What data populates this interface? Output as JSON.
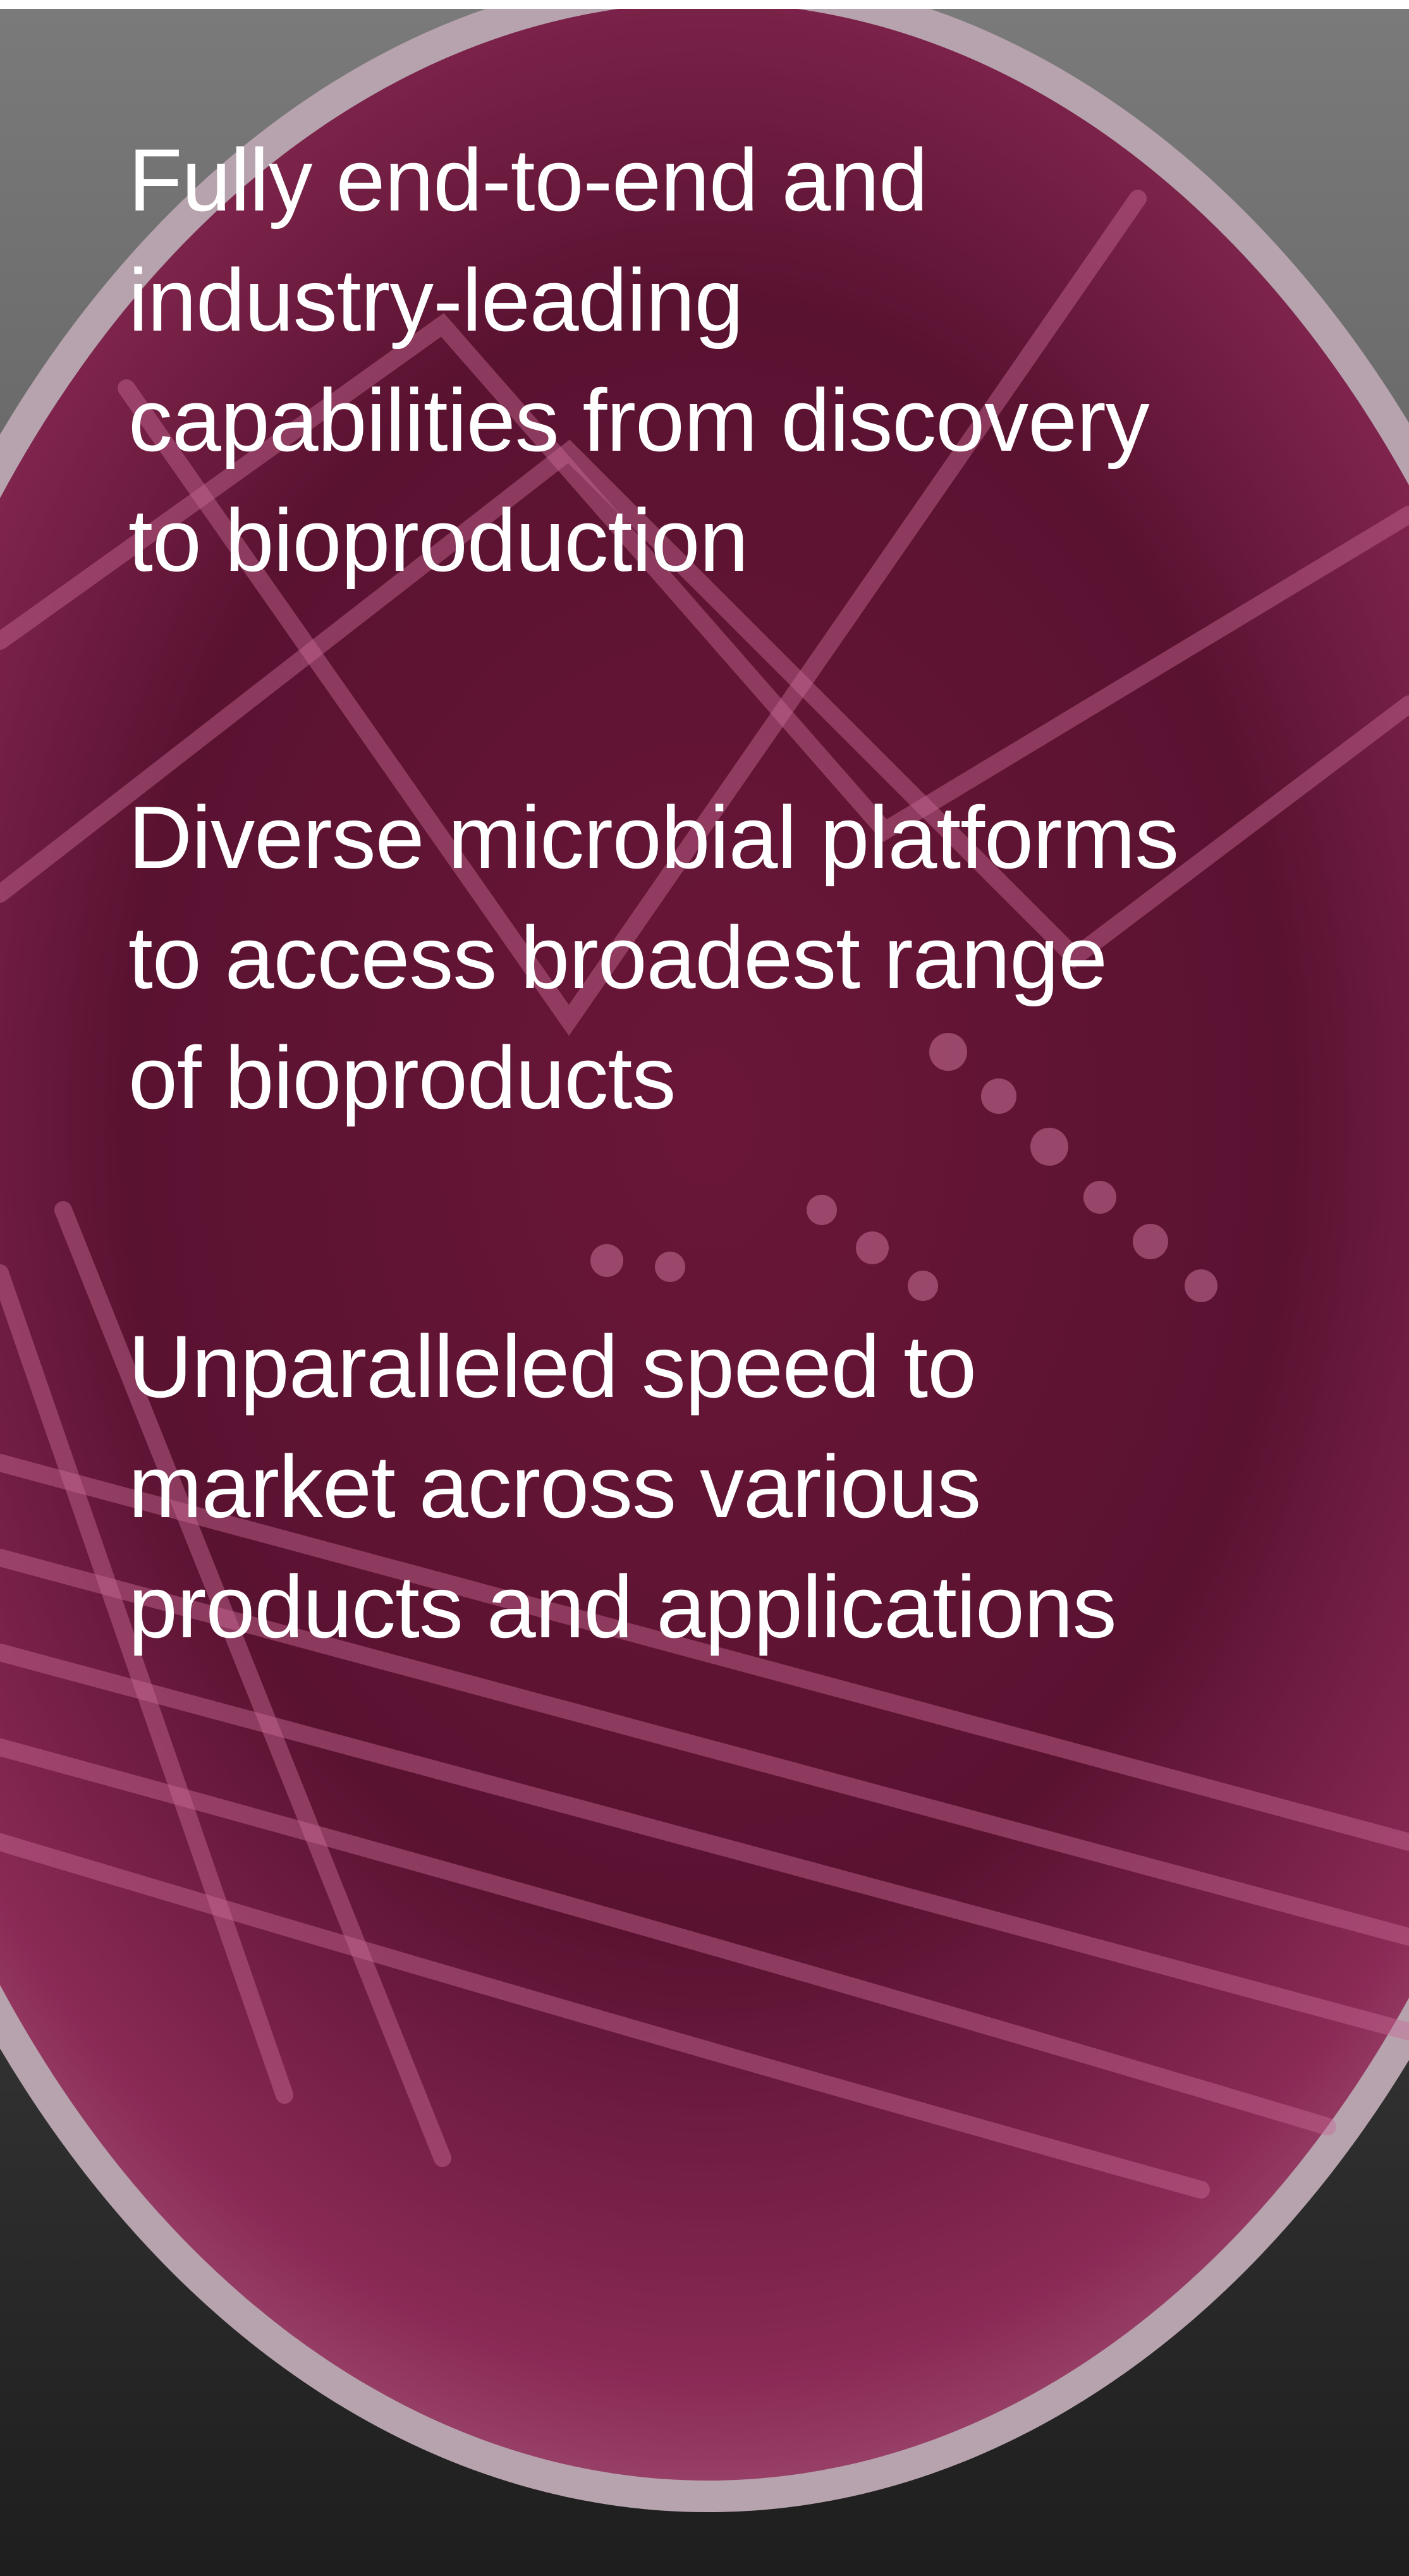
{
  "items": [
    {
      "lines": [
        "Fully end-to-end and",
        "industry-leading",
        "capabilities from discovery",
        "to bioproduction"
      ]
    },
    {
      "lines": [
        "Diverse microbial platforms",
        "to access broadest range",
        "of bioproducts"
      ]
    },
    {
      "lines": [
        "Unparalleled speed to",
        "market across various",
        "products and applications"
      ]
    }
  ]
}
